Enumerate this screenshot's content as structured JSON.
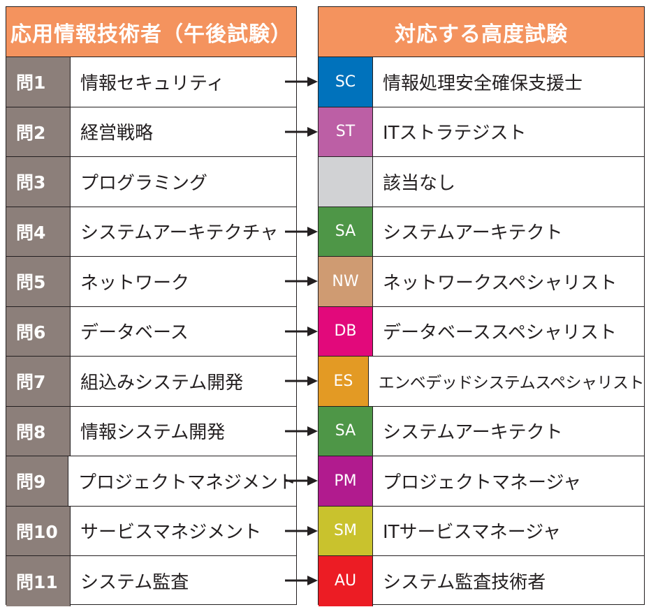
{
  "left_header": "応用情報技術者（午後試験）",
  "right_header": "対応する高度試験",
  "rows": [
    {
      "q": "問1",
      "topic": "情報セキュリティ",
      "code": "SC",
      "color": "#0072bc",
      "exam": "情報処理安全確保支援士",
      "arrow": true
    },
    {
      "q": "問2",
      "topic": "経営戦略",
      "code": "ST",
      "color": "#bc5fa5",
      "exam": "ITストラテジスト",
      "arrow": true
    },
    {
      "q": "問3",
      "topic": "プログラミング",
      "code": "",
      "color": "#d1d2d4",
      "exam": "該当なし",
      "arrow": false
    },
    {
      "q": "問4",
      "topic": "システムアーキテクチャ",
      "code": "SA",
      "color": "#4e9647",
      "exam": "システムアーキテクト",
      "arrow": true
    },
    {
      "q": "問5",
      "topic": "ネットワーク",
      "code": "NW",
      "color": "#cf9b72",
      "exam": "ネットワークスペシャリスト",
      "arrow": true
    },
    {
      "q": "問6",
      "topic": "データベース",
      "code": "DB",
      "color": "#e2097b",
      "exam": "データベーススペシャリスト",
      "arrow": true
    },
    {
      "q": "問7",
      "topic": "組込みシステム開発",
      "code": "ES",
      "color": "#e39a24",
      "exam": "エンベデッドシステムスペシャリスト",
      "arrow": true
    },
    {
      "q": "問8",
      "topic": "情報システム開発",
      "code": "SA",
      "color": "#4e9647",
      "exam": "システムアーキテクト",
      "arrow": true
    },
    {
      "q": "問9",
      "topic": "プロジェクトマネジメント",
      "code": "PM",
      "color": "#b11b8e",
      "exam": "プロジェクトマネージャ",
      "arrow": true
    },
    {
      "q": "問10",
      "topic": "サービスマネジメント",
      "code": "SM",
      "color": "#c9c22d",
      "exam": "ITサービスマネージャ",
      "arrow": true
    },
    {
      "q": "問11",
      "topic": "システム監査",
      "code": "AU",
      "color": "#ec1c24",
      "exam": "システム監査技術者",
      "arrow": true
    }
  ]
}
